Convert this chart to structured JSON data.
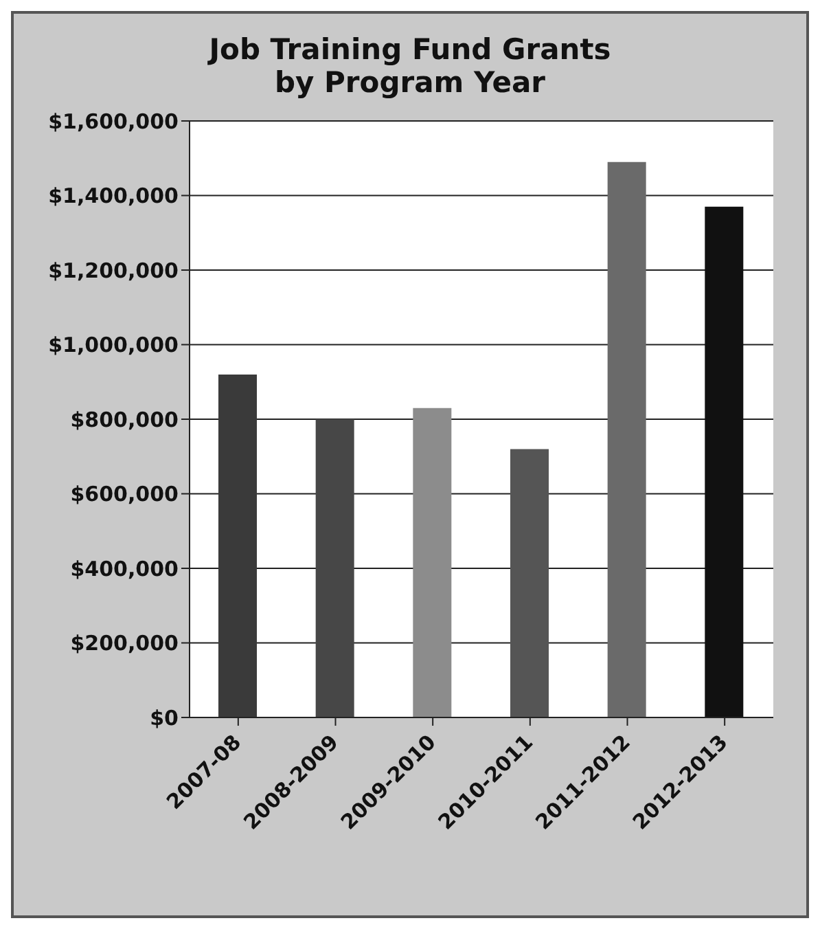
{
  "chart_data": {
    "type": "bar",
    "title": "Job Training Fund Grants\nby Program Year",
    "categories": [
      "2007-08",
      "2008-2009",
      "2009-2010",
      "2010-2011",
      "2011-2012",
      "2012-2013"
    ],
    "values": [
      920000,
      800000,
      830000,
      720000,
      1490000,
      1370000
    ],
    "colors": [
      "#3a3a3a",
      "#474747",
      "#8c8c8c",
      "#555555",
      "#6a6a6a",
      "#111111"
    ],
    "ylim": [
      0,
      1600000
    ],
    "yticks": [
      {
        "value": 0,
        "label": "$0"
      },
      {
        "value": 200000,
        "label": "$200,000"
      },
      {
        "value": 400000,
        "label": "$400,000"
      },
      {
        "value": 600000,
        "label": "$600,000"
      },
      {
        "value": 800000,
        "label": "$800,000"
      },
      {
        "value": 1000000,
        "label": "$1,000,000"
      },
      {
        "value": 1200000,
        "label": "$1,200,000"
      },
      {
        "value": 1400000,
        "label": "$1,400,000"
      },
      {
        "value": 1600000,
        "label": "$1,600,000"
      }
    ],
    "grid": "y"
  }
}
